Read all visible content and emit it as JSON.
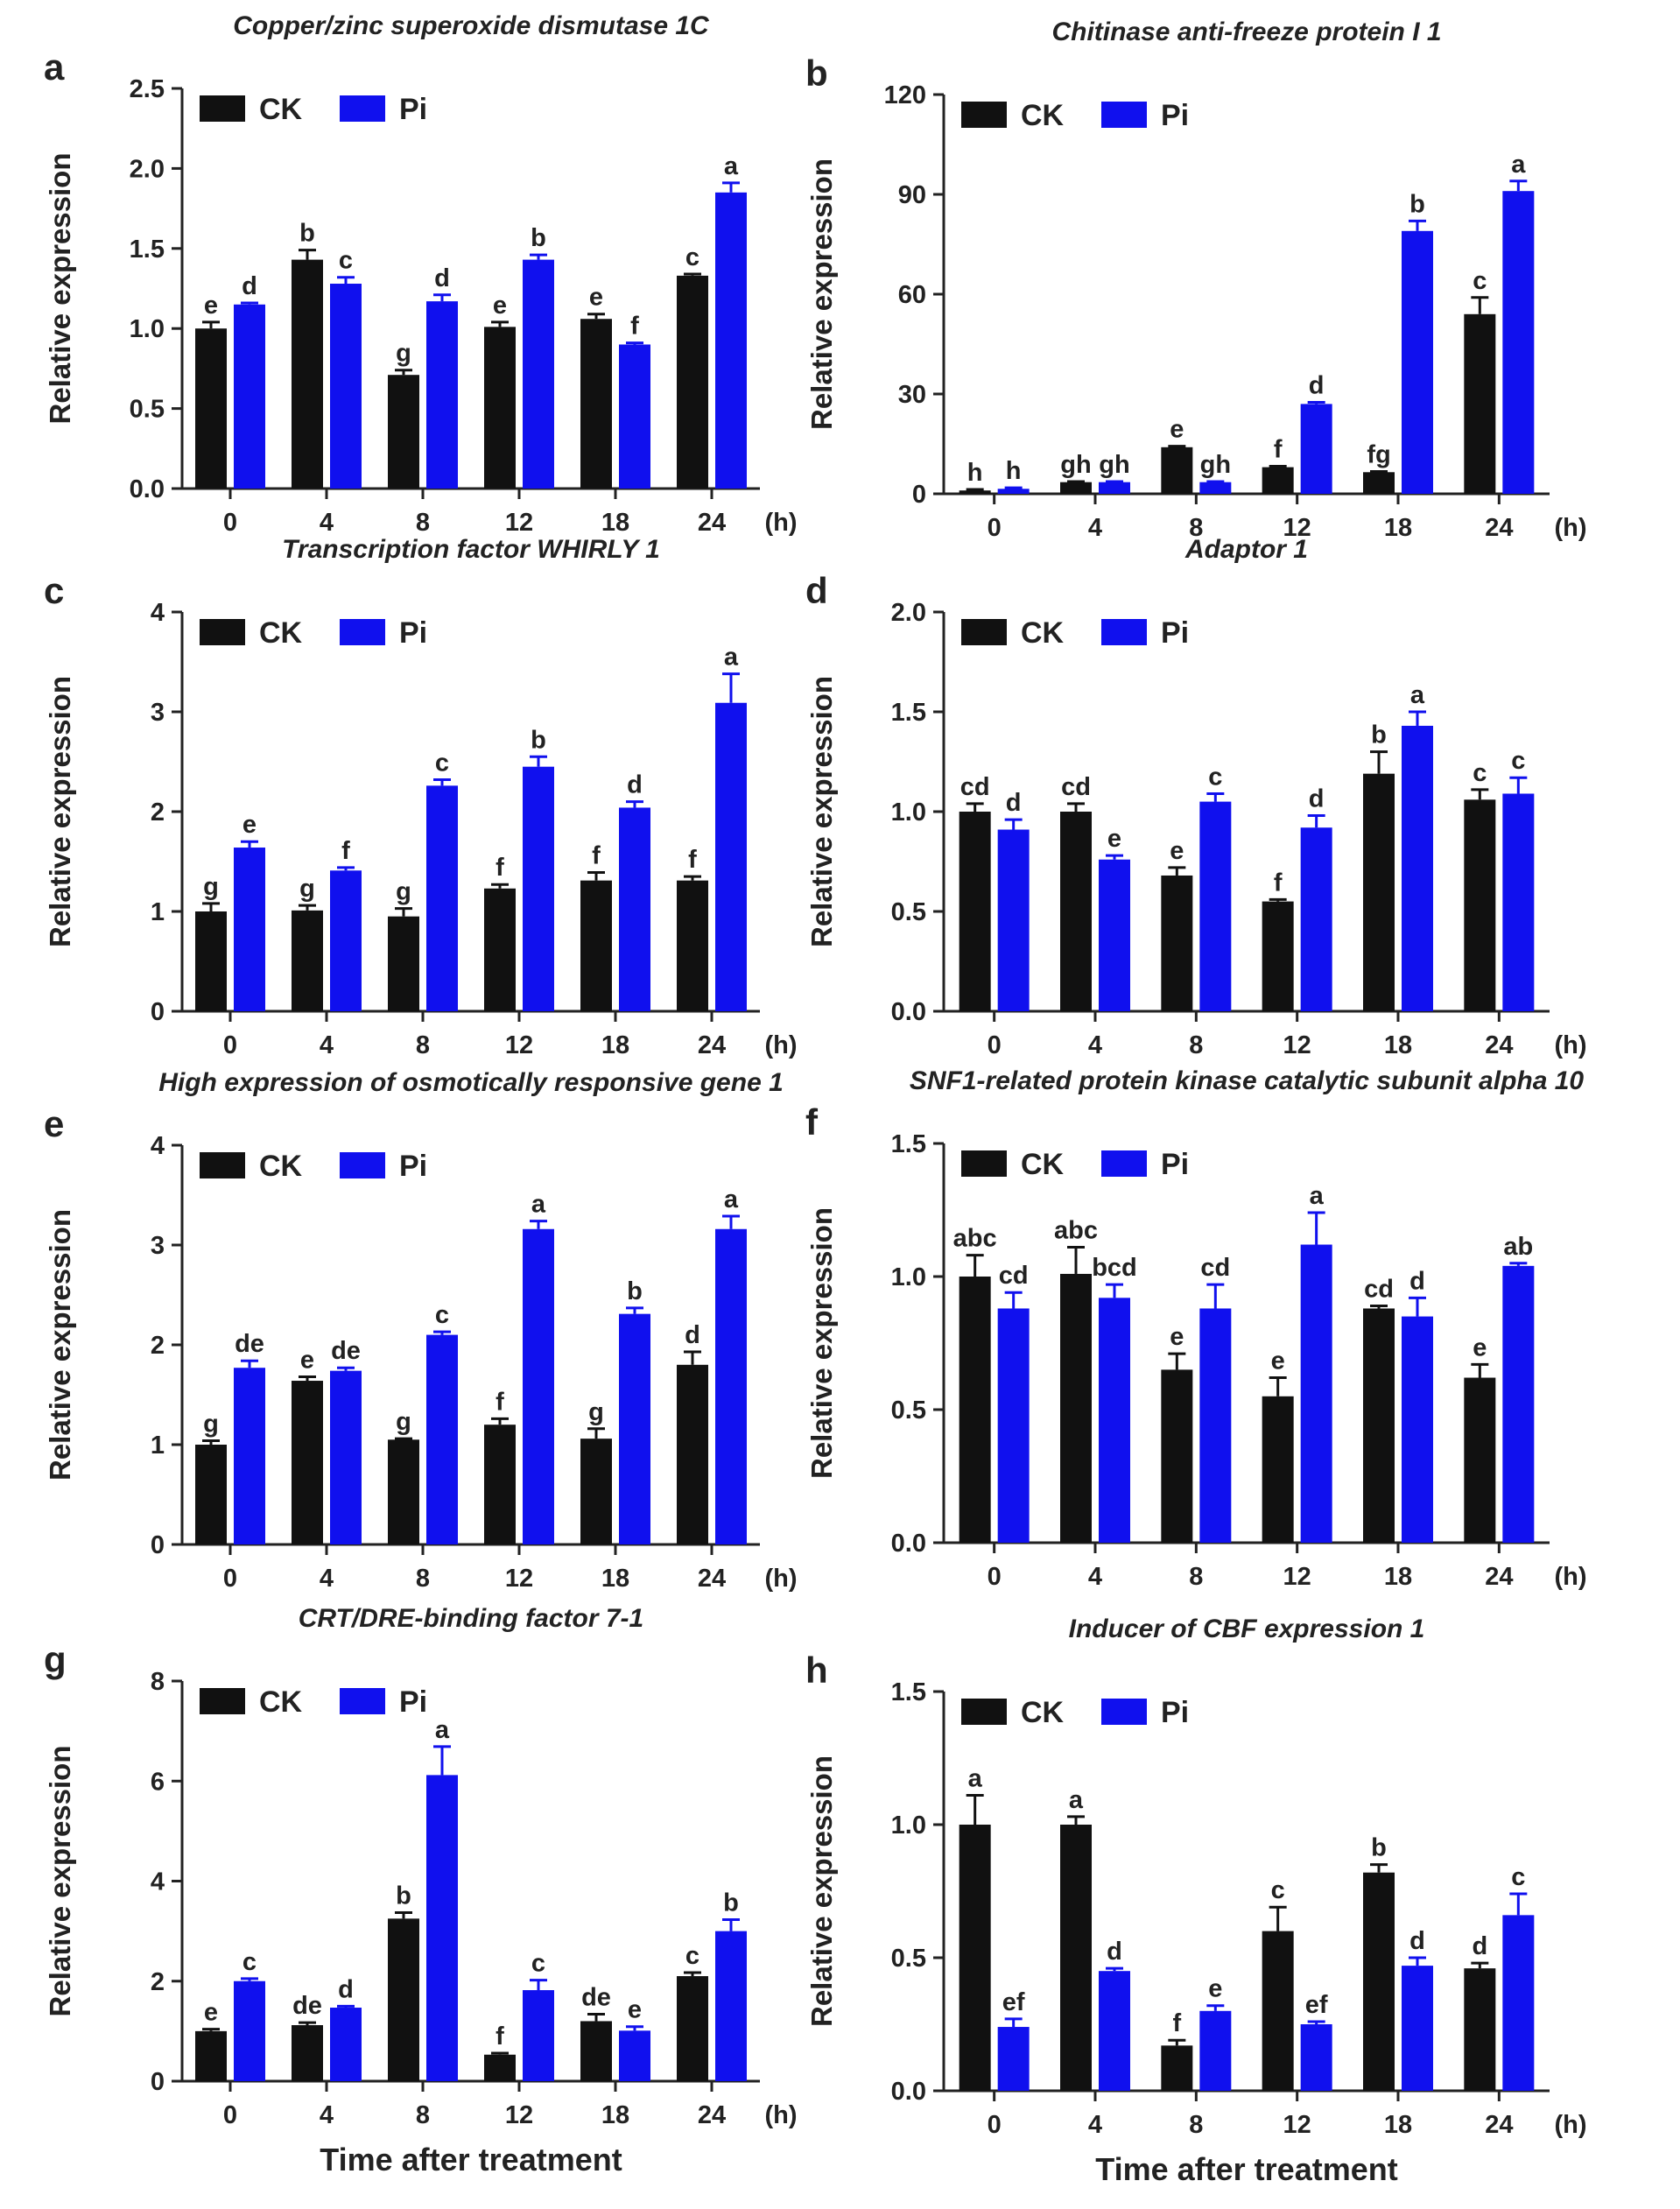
{
  "chart_data": [
    {
      "type": "bar",
      "panel": "a",
      "title": "Copper/zinc superoxide dismutase 1C",
      "ylabel": "Relative expression",
      "xlabel": "",
      "x_unit": "(h)",
      "categories": [
        "0",
        "4",
        "8",
        "12",
        "18",
        "24"
      ],
      "ylim": [
        0,
        2.5
      ],
      "yticks": [
        "0.0",
        "0.5",
        "1.0",
        "1.5",
        "2.0",
        "2.5"
      ],
      "legend": [
        "CK",
        "Pi"
      ],
      "series": [
        {
          "name": "CK",
          "color": "#111111",
          "values": [
            1.0,
            1.43,
            0.71,
            1.01,
            1.06,
            1.33
          ],
          "errors": [
            0.04,
            0.06,
            0.03,
            0.03,
            0.03,
            0.01
          ],
          "letters": [
            "e",
            "b",
            "g",
            "e",
            "e",
            "c"
          ]
        },
        {
          "name": "Pi",
          "color": "#1010ee",
          "values": [
            1.15,
            1.28,
            1.17,
            1.43,
            0.9,
            1.85
          ],
          "errors": [
            0.01,
            0.04,
            0.04,
            0.03,
            0.01,
            0.06
          ],
          "letters": [
            "d",
            "c",
            "d",
            "b",
            "f",
            "a"
          ]
        }
      ]
    },
    {
      "type": "bar",
      "panel": "b",
      "title": "Chitinase anti-freeze protein I 1",
      "ylabel": "Relative expression",
      "xlabel": "",
      "x_unit": "(h)",
      "categories": [
        "0",
        "4",
        "8",
        "12",
        "18",
        "24"
      ],
      "ylim": [
        0,
        120
      ],
      "yticks": [
        "0",
        "30",
        "60",
        "90",
        "120"
      ],
      "legend": [
        "CK",
        "Pi"
      ],
      "series": [
        {
          "name": "CK",
          "color": "#111111",
          "values": [
            1.0,
            3.5,
            14.0,
            8.0,
            6.5,
            54.0
          ],
          "errors": [
            0.3,
            0.2,
            0.3,
            0.3,
            0.2,
            5.0
          ],
          "letters": [
            "h",
            "gh",
            "e",
            "f",
            "fg",
            "c"
          ]
        },
        {
          "name": "Pi",
          "color": "#1010ee",
          "values": [
            1.5,
            3.5,
            3.5,
            27.0,
            79.0,
            91.0
          ],
          "errors": [
            0.3,
            0.2,
            0.2,
            0.5,
            3.0,
            3.0
          ],
          "letters": [
            "h",
            "gh",
            "gh",
            "d",
            "b",
            "a"
          ]
        }
      ]
    },
    {
      "type": "bar",
      "panel": "c",
      "title": "Transcription factor WHIRLY 1",
      "ylabel": "Relative expression",
      "xlabel": "",
      "x_unit": "(h)",
      "categories": [
        "0",
        "4",
        "8",
        "12",
        "18",
        "24"
      ],
      "ylim": [
        0,
        4
      ],
      "yticks": [
        "0",
        "1",
        "2",
        "3",
        "4"
      ],
      "legend": [
        "CK",
        "Pi"
      ],
      "series": [
        {
          "name": "CK",
          "color": "#111111",
          "values": [
            1.0,
            1.01,
            0.95,
            1.23,
            1.31,
            1.31
          ],
          "errors": [
            0.08,
            0.05,
            0.08,
            0.04,
            0.08,
            0.04
          ],
          "letters": [
            "g",
            "g",
            "g",
            "f",
            "f",
            "f"
          ]
        },
        {
          "name": "Pi",
          "color": "#1010ee",
          "values": [
            1.64,
            1.41,
            2.26,
            2.45,
            2.04,
            3.09
          ],
          "errors": [
            0.06,
            0.03,
            0.06,
            0.1,
            0.06,
            0.29
          ],
          "letters": [
            "e",
            "f",
            "c",
            "b",
            "d",
            "a"
          ]
        }
      ]
    },
    {
      "type": "bar",
      "panel": "d",
      "title": "Adaptor 1",
      "ylabel": "Relative expression",
      "xlabel": "",
      "x_unit": "(h)",
      "categories": [
        "0",
        "4",
        "8",
        "12",
        "18",
        "24"
      ],
      "ylim": [
        0,
        2.0
      ],
      "yticks": [
        "0.0",
        "0.5",
        "1.0",
        "1.5",
        "2.0"
      ],
      "legend": [
        "CK",
        "Pi"
      ],
      "series": [
        {
          "name": "CK",
          "color": "#111111",
          "values": [
            1.0,
            1.0,
            0.68,
            0.55,
            1.19,
            1.06
          ],
          "errors": [
            0.04,
            0.04,
            0.04,
            0.01,
            0.11,
            0.05
          ],
          "letters": [
            "cd",
            "cd",
            "e",
            "f",
            "b",
            "c"
          ]
        },
        {
          "name": "Pi",
          "color": "#1010ee",
          "values": [
            0.91,
            0.76,
            1.05,
            0.92,
            1.43,
            1.09
          ],
          "errors": [
            0.05,
            0.02,
            0.04,
            0.06,
            0.07,
            0.08
          ],
          "letters": [
            "d",
            "e",
            "c",
            "d",
            "a",
            "c"
          ]
        }
      ]
    },
    {
      "type": "bar",
      "panel": "e",
      "title": "High expression of osmotically responsive gene 1",
      "ylabel": "Relative expression",
      "xlabel": "",
      "x_unit": "(h)",
      "categories": [
        "0",
        "4",
        "8",
        "12",
        "18",
        "24"
      ],
      "ylim": [
        0,
        4
      ],
      "yticks": [
        "0",
        "1",
        "2",
        "3",
        "4"
      ],
      "legend": [
        "CK",
        "Pi"
      ],
      "series": [
        {
          "name": "CK",
          "color": "#111111",
          "values": [
            1.0,
            1.64,
            1.05,
            1.2,
            1.06,
            1.8
          ],
          "errors": [
            0.04,
            0.04,
            0.01,
            0.06,
            0.1,
            0.13
          ],
          "letters": [
            "g",
            "e",
            "g",
            "f",
            "g",
            "d"
          ]
        },
        {
          "name": "Pi",
          "color": "#1010ee",
          "values": [
            1.77,
            1.74,
            2.1,
            3.16,
            2.31,
            3.16
          ],
          "errors": [
            0.07,
            0.03,
            0.03,
            0.08,
            0.06,
            0.13
          ],
          "letters": [
            "de",
            "de",
            "c",
            "a",
            "b",
            "a"
          ]
        }
      ]
    },
    {
      "type": "bar",
      "panel": "f",
      "title": "SNF1-related protein kinase catalytic subunit alpha 10",
      "ylabel": "Relative expression",
      "xlabel": "",
      "x_unit": "(h)",
      "categories": [
        "0",
        "4",
        "8",
        "12",
        "18",
        "24"
      ],
      "ylim": [
        0,
        1.5
      ],
      "yticks": [
        "0.0",
        "0.5",
        "1.0",
        "1.5"
      ],
      "legend": [
        "CK",
        "Pi"
      ],
      "series": [
        {
          "name": "CK",
          "color": "#111111",
          "values": [
            1.0,
            1.01,
            0.65,
            0.55,
            0.88,
            0.62
          ],
          "errors": [
            0.08,
            0.1,
            0.06,
            0.07,
            0.01,
            0.05
          ],
          "letters": [
            "abc",
            "abc",
            "e",
            "e",
            "cd",
            "e"
          ]
        },
        {
          "name": "Pi",
          "color": "#1010ee",
          "values": [
            0.88,
            0.92,
            0.88,
            1.12,
            0.85,
            1.04
          ],
          "errors": [
            0.06,
            0.05,
            0.09,
            0.12,
            0.07,
            0.01
          ],
          "letters": [
            "cd",
            "bcd",
            "cd",
            "a",
            "d",
            "ab"
          ]
        }
      ]
    },
    {
      "type": "bar",
      "panel": "g",
      "title": "CRT/DRE-binding factor 7-1",
      "ylabel": "Relative expression",
      "xlabel": "Time after treatment",
      "x_unit": "(h)",
      "categories": [
        "0",
        "4",
        "8",
        "12",
        "18",
        "24"
      ],
      "ylim": [
        0,
        8
      ],
      "yticks": [
        "0",
        "2",
        "4",
        "6",
        "8"
      ],
      "legend": [
        "CK",
        "Pi"
      ],
      "series": [
        {
          "name": "CK",
          "color": "#111111",
          "values": [
            1.0,
            1.12,
            3.25,
            0.53,
            1.2,
            2.1
          ],
          "errors": [
            0.04,
            0.05,
            0.12,
            0.03,
            0.14,
            0.07
          ],
          "letters": [
            "e",
            "de",
            "b",
            "f",
            "de",
            "c"
          ]
        },
        {
          "name": "Pi",
          "color": "#1010ee",
          "values": [
            2.0,
            1.47,
            6.12,
            1.82,
            1.01,
            3.0
          ],
          "errors": [
            0.05,
            0.03,
            0.57,
            0.2,
            0.08,
            0.23
          ],
          "letters": [
            "c",
            "d",
            "a",
            "c",
            "e",
            "b"
          ]
        }
      ]
    },
    {
      "type": "bar",
      "panel": "h",
      "title": "Inducer of CBF expression 1",
      "ylabel": "Relative expression",
      "xlabel": "Time after treatment",
      "x_unit": "(h)",
      "categories": [
        "0",
        "4",
        "8",
        "12",
        "18",
        "24"
      ],
      "ylim": [
        0,
        1.5
      ],
      "yticks": [
        "0.0",
        "0.5",
        "1.0",
        "1.5"
      ],
      "legend": [
        "CK",
        "Pi"
      ],
      "series": [
        {
          "name": "CK",
          "color": "#111111",
          "values": [
            1.0,
            1.0,
            0.17,
            0.6,
            0.82,
            0.46
          ],
          "errors": [
            0.11,
            0.03,
            0.02,
            0.09,
            0.03,
            0.02
          ],
          "letters": [
            "a",
            "a",
            "f",
            "c",
            "b",
            "d"
          ]
        },
        {
          "name": "Pi",
          "color": "#1010ee",
          "values": [
            0.24,
            0.45,
            0.3,
            0.25,
            0.47,
            0.66
          ],
          "errors": [
            0.03,
            0.01,
            0.02,
            0.01,
            0.03,
            0.08
          ],
          "letters": [
            "ef",
            "d",
            "e",
            "ef",
            "d",
            "c"
          ]
        }
      ]
    }
  ]
}
